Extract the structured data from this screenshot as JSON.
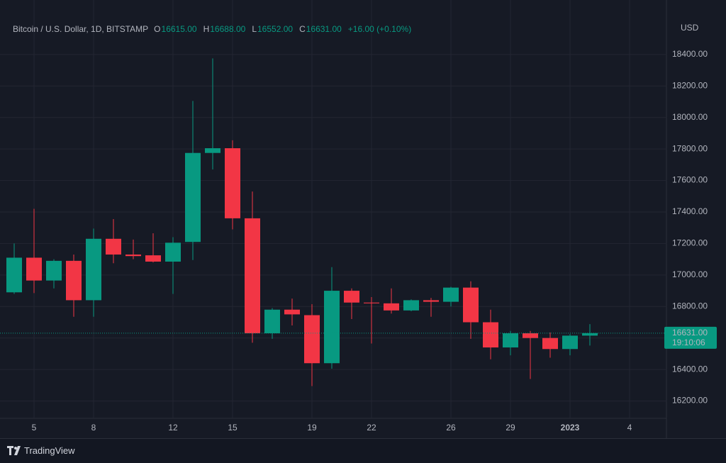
{
  "chart_data": {
    "type": "candlestick",
    "header": {
      "symbol": "Bitcoin / U.S. Dollar, 1D, BITSTAMP",
      "o_key": "O",
      "o": "16615.00",
      "h_key": "H",
      "h": "16688.00",
      "l_key": "L",
      "l": "16552.00",
      "c_key": "C",
      "c": "16631.00",
      "change": "+16.00 (+0.10%)"
    },
    "currency": "USD",
    "categories": [
      null,
      "5",
      null,
      null,
      "8",
      null,
      null,
      null,
      "12",
      null,
      null,
      "15",
      null,
      null,
      null,
      "19",
      null,
      null,
      "22",
      null,
      null,
      null,
      "26",
      null,
      null,
      "29",
      null,
      null,
      "2023",
      null,
      null,
      "4"
    ],
    "open": [
      16890,
      17110,
      16965,
      17090,
      16840,
      17230,
      17130,
      17125,
      17085,
      17210,
      17775,
      17805,
      17360,
      16630,
      16780,
      16745,
      16440,
      16900,
      16825,
      16820,
      16775,
      16840,
      16830,
      16920,
      16700,
      16540,
      16630,
      16600,
      16530,
      16615,
      null,
      null
    ],
    "high": [
      17200,
      17420,
      17100,
      17130,
      17295,
      17355,
      17225,
      17265,
      17240,
      18105,
      18375,
      17855,
      17530,
      16790,
      16850,
      16815,
      17050,
      16915,
      16860,
      16915,
      16845,
      16855,
      16925,
      16960,
      16780,
      16645,
      16645,
      16635,
      16625,
      16688,
      null,
      null
    ],
    "low": [
      16880,
      16885,
      16915,
      16735,
      16735,
      17075,
      17100,
      17080,
      16880,
      17095,
      17670,
      17290,
      16570,
      16595,
      16680,
      16295,
      16405,
      16720,
      16565,
      16755,
      16770,
      16735,
      16800,
      16595,
      16465,
      16490,
      16340,
      16475,
      16490,
      16552,
      null,
      null
    ],
    "close": [
      17110,
      16965,
      17090,
      16840,
      17230,
      17130,
      17120,
      17085,
      17205,
      17775,
      17805,
      17360,
      16630,
      16780,
      16750,
      16440,
      16900,
      16825,
      16820,
      16775,
      16840,
      16830,
      16920,
      16700,
      16540,
      16630,
      16600,
      16530,
      16615,
      16631,
      null,
      null
    ],
    "up_color": "#089981",
    "down_color": "#f23645",
    "ylim": [
      16090,
      18620
    ],
    "yticks": [
      {
        "value": 16200,
        "label": "16200.00"
      },
      {
        "value": 16400,
        "label": "16400.00"
      },
      {
        "value": 16600,
        "label": "16600.00"
      },
      {
        "value": 16800,
        "label": "16800.00"
      },
      {
        "value": 17000,
        "label": "17000.00"
      },
      {
        "value": 17200,
        "label": "17200.00"
      },
      {
        "value": 17400,
        "label": "17400.00"
      },
      {
        "value": 17600,
        "label": "17600.00"
      },
      {
        "value": 17800,
        "label": "17800.00"
      },
      {
        "value": 18000,
        "label": "18000.00"
      },
      {
        "value": 18200,
        "label": "18200.00"
      },
      {
        "value": 18400,
        "label": "18400.00"
      }
    ],
    "grid": true,
    "price_label": {
      "value": 16631,
      "label": "16631.00"
    },
    "countdown": "19:10:06",
    "brand": "TradingView"
  }
}
